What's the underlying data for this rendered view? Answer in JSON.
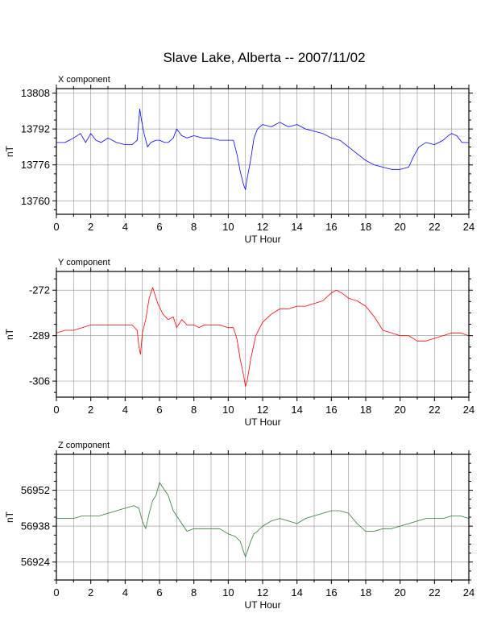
{
  "title": "Slave Lake, Alberta -- 2007/11/02",
  "chart_data": [
    {
      "type": "line",
      "label": "X component",
      "ylabel": "nT",
      "xlabel": "UT Hour",
      "color": "#0000ff",
      "xlim": [
        0,
        24
      ],
      "ylim": [
        13754,
        13810
      ],
      "xticks": [
        0,
        2,
        4,
        6,
        8,
        10,
        12,
        14,
        16,
        18,
        20,
        22,
        24
      ],
      "yticks": [
        13760,
        13776,
        13792,
        13808
      ],
      "grid": true,
      "series": [
        {
          "x": [
            0,
            0.5,
            1,
            1.4,
            1.7,
            2,
            2.3,
            2.6,
            3,
            3.5,
            4,
            4.4,
            4.7,
            4.85,
            4.95,
            5.1,
            5.3,
            5.5,
            5.8,
            6,
            6.3,
            6.5,
            6.8,
            7,
            7.3,
            7.6,
            8,
            8.5,
            9,
            9.5,
            10,
            10.3,
            10.5,
            10.7,
            10.9,
            11,
            11.1,
            11.3,
            11.5,
            11.7,
            12,
            12.5,
            13,
            13.5,
            14,
            14.5,
            15,
            15.5,
            16,
            16.5,
            17,
            17.5,
            18,
            18.5,
            19,
            19.5,
            20,
            20.5,
            20.8,
            21.1,
            21.5,
            22,
            22.5,
            22.8,
            23,
            23.3,
            23.6,
            24
          ],
          "y": [
            13786,
            13786,
            13788,
            13790,
            13786,
            13790,
            13787,
            13786,
            13788,
            13786,
            13785,
            13785,
            13787,
            13801,
            13796,
            13790,
            13784,
            13786,
            13787,
            13787,
            13786,
            13786,
            13788,
            13792,
            13789,
            13788,
            13789,
            13788,
            13788,
            13787,
            13787,
            13787,
            13781,
            13773,
            13767,
            13765,
            13770,
            13778,
            13788,
            13792,
            13794,
            13793,
            13795,
            13793,
            13794,
            13792,
            13791,
            13790,
            13788,
            13787,
            13784,
            13781,
            13778,
            13776,
            13775,
            13774,
            13774,
            13775,
            13780,
            13784,
            13786,
            13785,
            13787,
            13789,
            13790,
            13789,
            13786,
            13786
          ]
        }
      ]
    },
    {
      "type": "line",
      "label": "Y component",
      "ylabel": "nT",
      "xlabel": "UT Hour",
      "color": "#ff0000",
      "xlim": [
        0,
        24
      ],
      "ylim": [
        -312,
        -265
      ],
      "xticks": [
        0,
        2,
        4,
        6,
        8,
        10,
        12,
        14,
        16,
        18,
        20,
        22,
        24
      ],
      "yticks": [
        -272,
        -289,
        -306
      ],
      "grid": true,
      "series": [
        {
          "x": [
            0,
            0.5,
            1,
            1.5,
            2,
            2.5,
            3,
            3.5,
            4,
            4.4,
            4.7,
            4.8,
            4.9,
            5.0,
            5.2,
            5.4,
            5.6,
            5.9,
            6.2,
            6.5,
            6.8,
            7,
            7.3,
            7.6,
            8,
            8.3,
            8.6,
            9,
            9.5,
            10,
            10.3,
            10.5,
            10.7,
            10.9,
            11,
            11.1,
            11.3,
            11.6,
            12,
            12.5,
            13,
            13.5,
            14,
            14.5,
            15,
            15.5,
            16,
            16.3,
            16.6,
            17,
            17.5,
            18,
            18.5,
            19,
            19.5,
            20,
            20.5,
            21,
            21.5,
            22,
            22.5,
            23,
            23.5,
            24
          ],
          "y": [
            -288,
            -287,
            -287,
            -286,
            -285,
            -285,
            -285,
            -285,
            -285,
            -285,
            -287,
            -293,
            -296,
            -288,
            -283,
            -275,
            -271,
            -277,
            -281,
            -283,
            -282,
            -286,
            -283,
            -285,
            -285,
            -286,
            -285,
            -285,
            -285,
            -286,
            -286,
            -290,
            -298,
            -304,
            -308,
            -306,
            -298,
            -289,
            -284,
            -281,
            -279,
            -279,
            -278,
            -278,
            -277,
            -276,
            -273,
            -272,
            -273,
            -275,
            -276,
            -278,
            -282,
            -287,
            -288,
            -289,
            -289,
            -291,
            -291,
            -290,
            -289,
            -288,
            -288,
            -289
          ]
        }
      ]
    },
    {
      "type": "line",
      "label": "Z component",
      "ylabel": "nT",
      "xlabel": "UT Hour",
      "color": "#2e7d32",
      "xlim": [
        0,
        24
      ],
      "ylim": [
        56917,
        56966
      ],
      "xticks": [
        0,
        2,
        4,
        6,
        8,
        10,
        12,
        14,
        16,
        18,
        20,
        22,
        24
      ],
      "yticks": [
        56924,
        56938,
        56952
      ],
      "grid": true,
      "series": [
        {
          "x": [
            0,
            0.5,
            1,
            1.5,
            2,
            2.5,
            3,
            3.5,
            4,
            4.5,
            4.8,
            5.0,
            5.2,
            5.4,
            5.6,
            5.8,
            6,
            6.2,
            6.5,
            6.8,
            7,
            7.3,
            7.6,
            8,
            8.5,
            9,
            9.5,
            10,
            10.4,
            10.7,
            10.9,
            11,
            11.1,
            11.3,
            11.5,
            11.7,
            12,
            12.5,
            13,
            13.5,
            14,
            14.5,
            15,
            15.5,
            16,
            16.5,
            17,
            17.5,
            18,
            18.5,
            19,
            19.5,
            20,
            20.5,
            21,
            21.5,
            22,
            22.5,
            23,
            23.5,
            24
          ],
          "y": [
            56941,
            56941,
            56941,
            56942,
            56942,
            56942,
            56943,
            56944,
            56945,
            56946,
            56945,
            56940,
            56937,
            56943,
            56948,
            56950,
            56955,
            56953,
            56950,
            56944,
            56942,
            56939,
            56936,
            56937,
            56937,
            56937,
            56937,
            56935,
            56934,
            56932,
            56928,
            56926,
            56928,
            56932,
            56935,
            56936,
            56938,
            56940,
            56941,
            56940,
            56939,
            56941,
            56942,
            56943,
            56944,
            56944,
            56943,
            56939,
            56936,
            56936,
            56937,
            56937,
            56938,
            56939,
            56940,
            56941,
            56941,
            56941,
            56942,
            56942,
            56941
          ]
        }
      ]
    }
  ]
}
